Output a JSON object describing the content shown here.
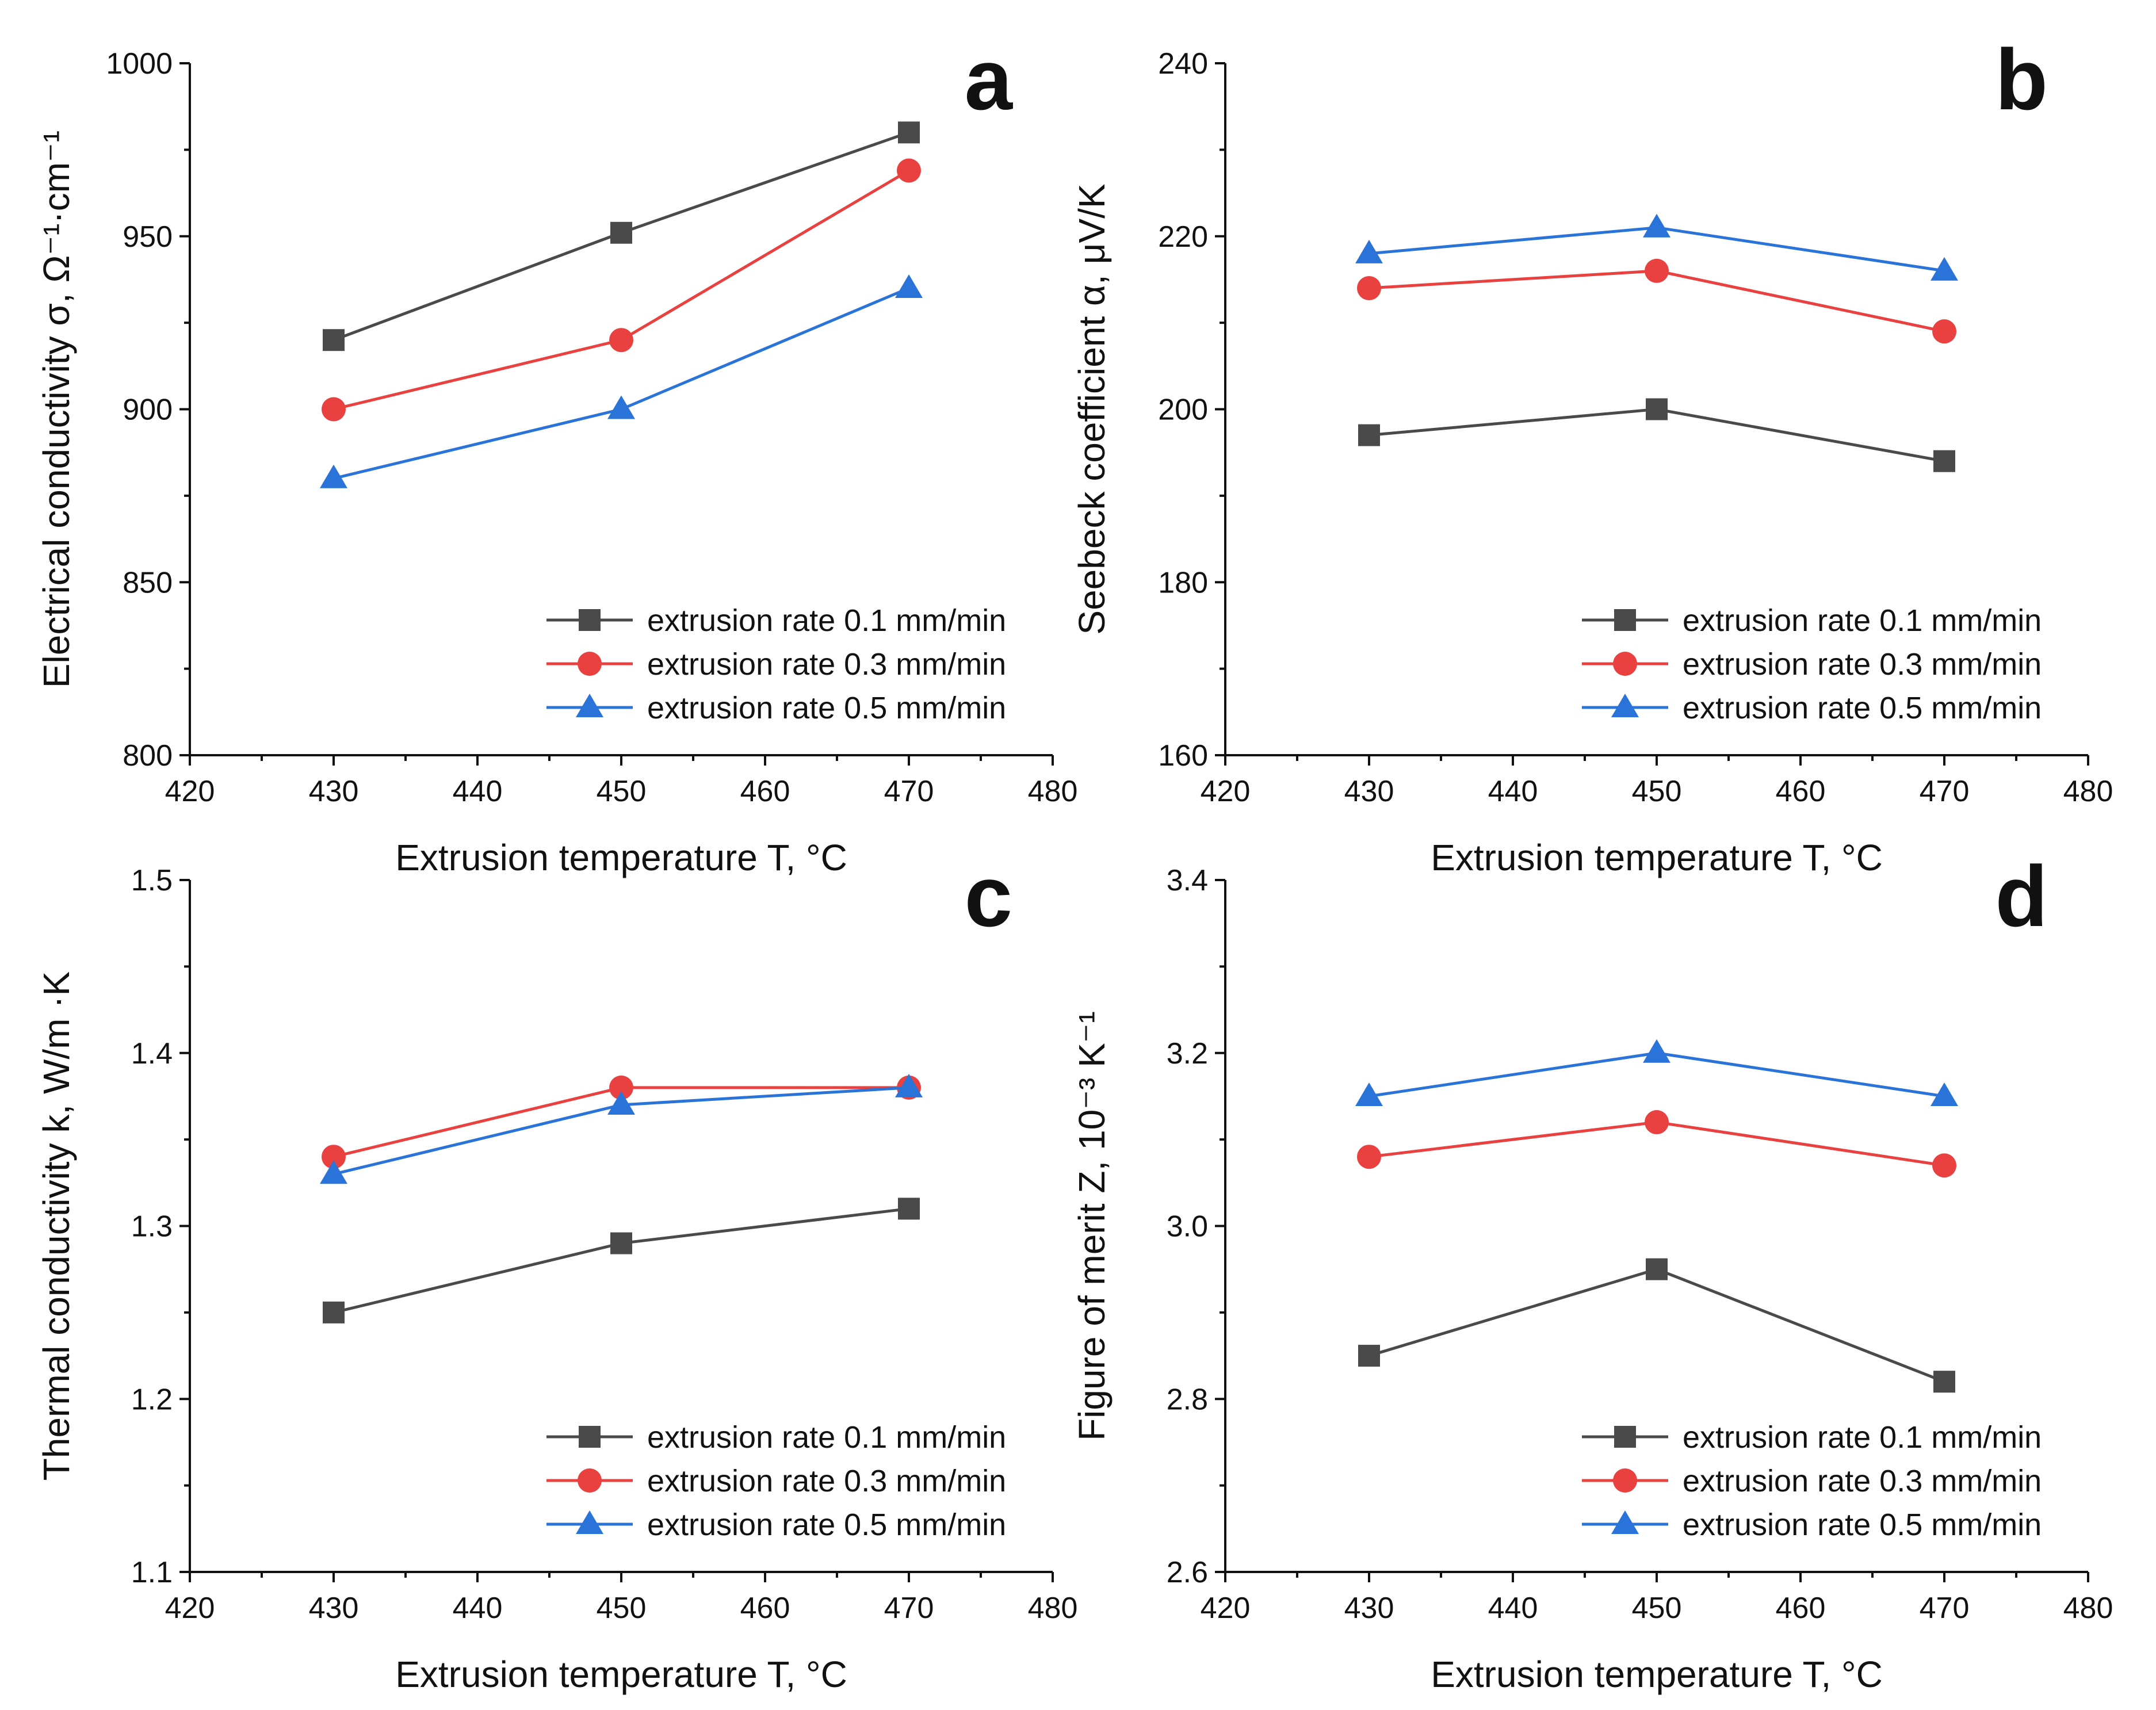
{
  "chart_data": [
    {
      "panel": "a",
      "type": "line",
      "xlabel": "Extrusion temperature T,  °C",
      "ylabel": "Electrical conductivity  σ, Ω⁻¹·cm⁻¹",
      "xlim": [
        420,
        480
      ],
      "ylim": [
        800,
        1000
      ],
      "xticks": [
        "420",
        "430",
        "440",
        "450",
        "460",
        "470",
        "480"
      ],
      "yticks": [
        "800",
        "850",
        "900",
        "950",
        "1000"
      ],
      "x": [
        430,
        450,
        470
      ],
      "series": [
        {
          "name": "extrusion rate 0.1 mm/min",
          "values": [
            920,
            951,
            980
          ],
          "marker": "square",
          "color": "#4a4a4a"
        },
        {
          "name": "extrusion rate 0.3 mm/min",
          "values": [
            900,
            920,
            969
          ],
          "marker": "circle",
          "color": "#e8413f"
        },
        {
          "name": "extrusion rate 0.5 mm/min",
          "values": [
            880,
            900,
            935
          ],
          "marker": "triangle",
          "color": "#2a74d9"
        }
      ],
      "legend": "bottom-right"
    },
    {
      "panel": "b",
      "type": "line",
      "xlabel": "Extrusion temperature T,  °C",
      "ylabel": "Seebeck coefficient  α, μV/K",
      "xlim": [
        420,
        480
      ],
      "ylim": [
        160,
        240
      ],
      "xticks": [
        "420",
        "430",
        "440",
        "450",
        "460",
        "470",
        "480"
      ],
      "yticks": [
        "160",
        "180",
        "200",
        "220",
        "240"
      ],
      "x": [
        430,
        450,
        470
      ],
      "series": [
        {
          "name": "extrusion rate 0.1 mm/min",
          "values": [
            197,
            200,
            194
          ],
          "marker": "square",
          "color": "#4a4a4a"
        },
        {
          "name": "extrusion rate 0.3 mm/min",
          "values": [
            214,
            216,
            209
          ],
          "marker": "circle",
          "color": "#e8413f"
        },
        {
          "name": "extrusion rate 0.5 mm/min",
          "values": [
            218,
            221,
            216
          ],
          "marker": "triangle",
          "color": "#2a74d9"
        }
      ],
      "legend": "bottom-right"
    },
    {
      "panel": "c",
      "type": "line",
      "xlabel": "Extrusion temperature T,  °C",
      "ylabel": "Thermal conductivity k, W/m ·K",
      "xlim": [
        420,
        480
      ],
      "ylim": [
        1.1,
        1.5
      ],
      "xticks": [
        "420",
        "430",
        "440",
        "450",
        "460",
        "470",
        "480"
      ],
      "yticks": [
        "1.1",
        "1.2",
        "1.3",
        "1.4",
        "1.5"
      ],
      "x": [
        430,
        450,
        470
      ],
      "series": [
        {
          "name": "extrusion rate 0.1 mm/min",
          "values": [
            1.25,
            1.29,
            1.31
          ],
          "marker": "square",
          "color": "#4a4a4a"
        },
        {
          "name": "extrusion rate 0.3 mm/min",
          "values": [
            1.34,
            1.38,
            1.38
          ],
          "marker": "circle",
          "color": "#e8413f"
        },
        {
          "name": "extrusion rate 0.5 mm/min",
          "values": [
            1.33,
            1.37,
            1.38
          ],
          "marker": "triangle",
          "color": "#2a74d9"
        }
      ],
      "legend": "bottom-right"
    },
    {
      "panel": "d",
      "type": "line",
      "xlabel": "Extrusion temperature T,  °C",
      "ylabel": "Figure of merit Z, 10⁻³ K⁻¹",
      "xlim": [
        420,
        480
      ],
      "ylim": [
        2.6,
        3.4
      ],
      "xticks": [
        "420",
        "430",
        "440",
        "450",
        "460",
        "470",
        "480"
      ],
      "yticks": [
        "2.6",
        "2.8",
        "3.0",
        "3.2",
        "3.4"
      ],
      "x": [
        430,
        450,
        470
      ],
      "series": [
        {
          "name": "extrusion rate 0.1 mm/min",
          "values": [
            2.85,
            2.95,
            2.82
          ],
          "marker": "square",
          "color": "#4a4a4a"
        },
        {
          "name": "extrusion rate 0.3 mm/min",
          "values": [
            3.08,
            3.12,
            3.07
          ],
          "marker": "circle",
          "color": "#e8413f"
        },
        {
          "name": "extrusion rate 0.5 mm/min",
          "values": [
            3.15,
            3.2,
            3.15
          ],
          "marker": "triangle",
          "color": "#2a74d9"
        }
      ],
      "legend": "bottom-right"
    }
  ]
}
